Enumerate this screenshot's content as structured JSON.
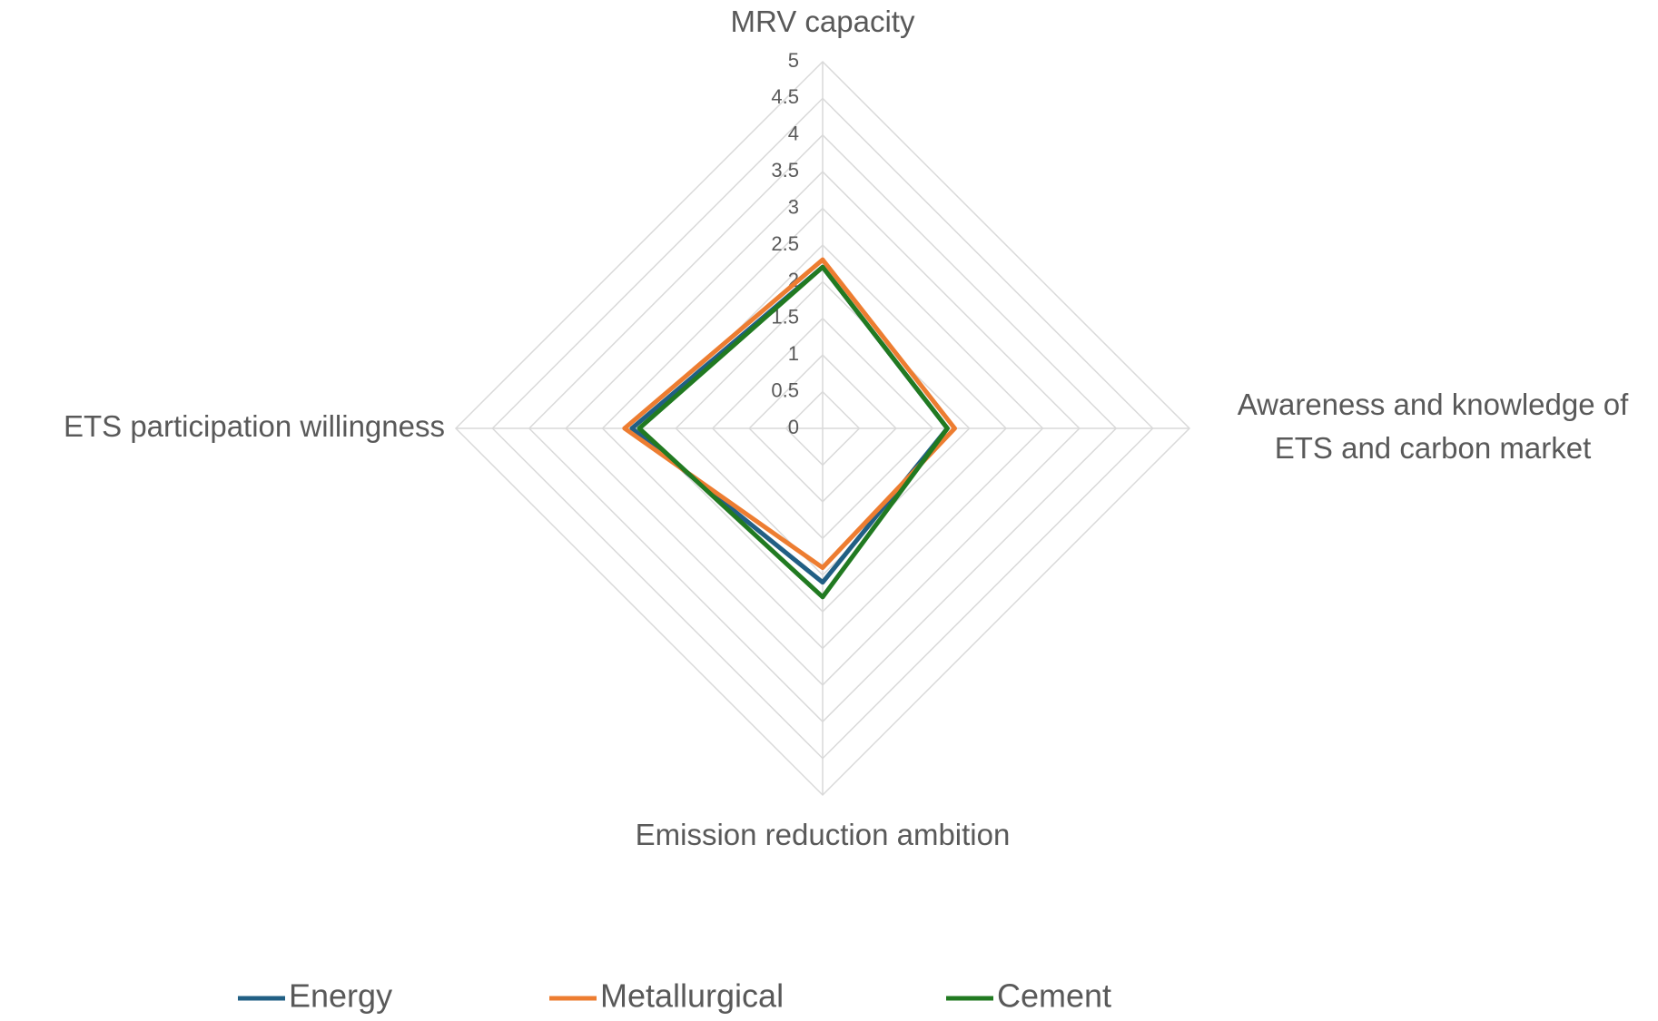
{
  "chart_data": {
    "type": "radar",
    "categories": [
      "MRV capacity",
      "Awareness and knowledge of ETS and carbon market",
      "Emission reduction ambition",
      "ETS participation willingness"
    ],
    "series": [
      {
        "name": "Energy",
        "color": "#215f84",
        "values": [
          2.2,
          1.7,
          2.1,
          2.6
        ]
      },
      {
        "name": "Metallurgical",
        "color": "#ed7d31",
        "values": [
          2.3,
          1.8,
          1.9,
          2.7
        ]
      },
      {
        "name": "Cement",
        "color": "#217a21",
        "values": [
          2.2,
          1.7,
          2.3,
          2.5
        ]
      }
    ],
    "ylim": [
      0,
      5
    ],
    "yticks": [
      0,
      0.5,
      1,
      1.5,
      2,
      2.5,
      3,
      3.5,
      4,
      4.5,
      5
    ],
    "grid": true,
    "legend": "bottom"
  }
}
